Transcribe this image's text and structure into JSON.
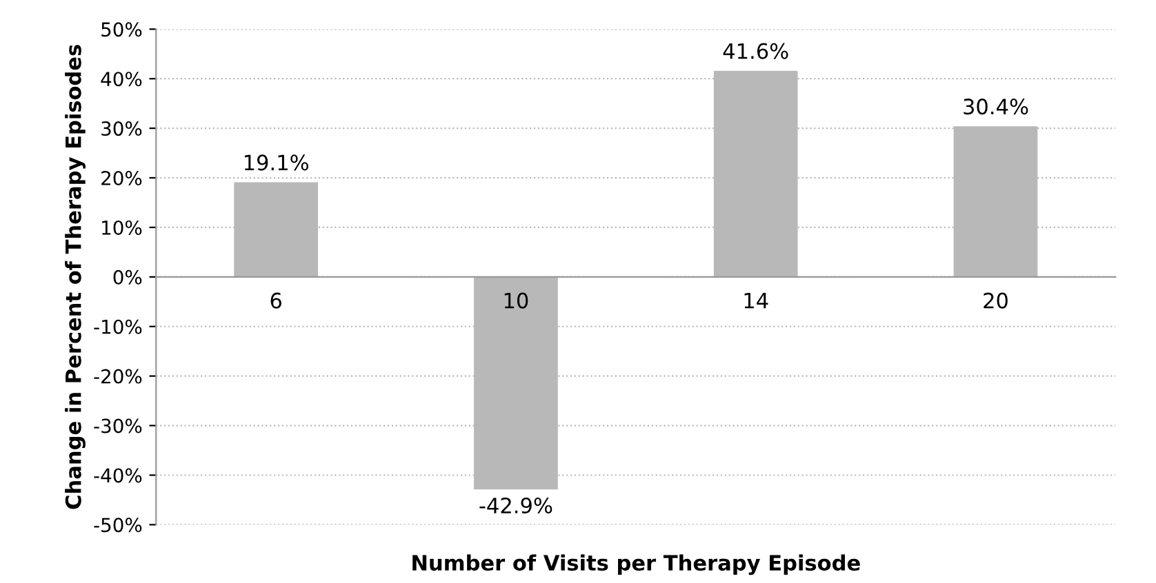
{
  "chart_data": {
    "type": "bar",
    "xlabel": "Number of Visits per Therapy Episode",
    "ylabel": "Change in Percent of Therapy Episodes",
    "categories": [
      "6",
      "10",
      "14",
      "20"
    ],
    "values": [
      19.1,
      -42.9,
      41.6,
      30.4
    ],
    "value_labels": [
      "19.1%",
      "-42.9%",
      "41.6%",
      "30.4%"
    ],
    "color": "#b8b8b8",
    "ylim": [
      -50,
      50
    ],
    "yticks": [
      {
        "value": 50,
        "label": "50%"
      },
      {
        "value": 40,
        "label": "40%"
      },
      {
        "value": 30,
        "label": "30%"
      },
      {
        "value": 20,
        "label": "20%"
      },
      {
        "value": 10,
        "label": "10%"
      },
      {
        "value": 0,
        "label": "0%"
      },
      {
        "value": -10,
        "label": "-10%"
      },
      {
        "value": -20,
        "label": "-20%"
      },
      {
        "value": -30,
        "label": "-30%"
      },
      {
        "value": -40,
        "label": "-40%"
      },
      {
        "value": -50,
        "label": "-50%"
      }
    ],
    "grid": "y"
  }
}
